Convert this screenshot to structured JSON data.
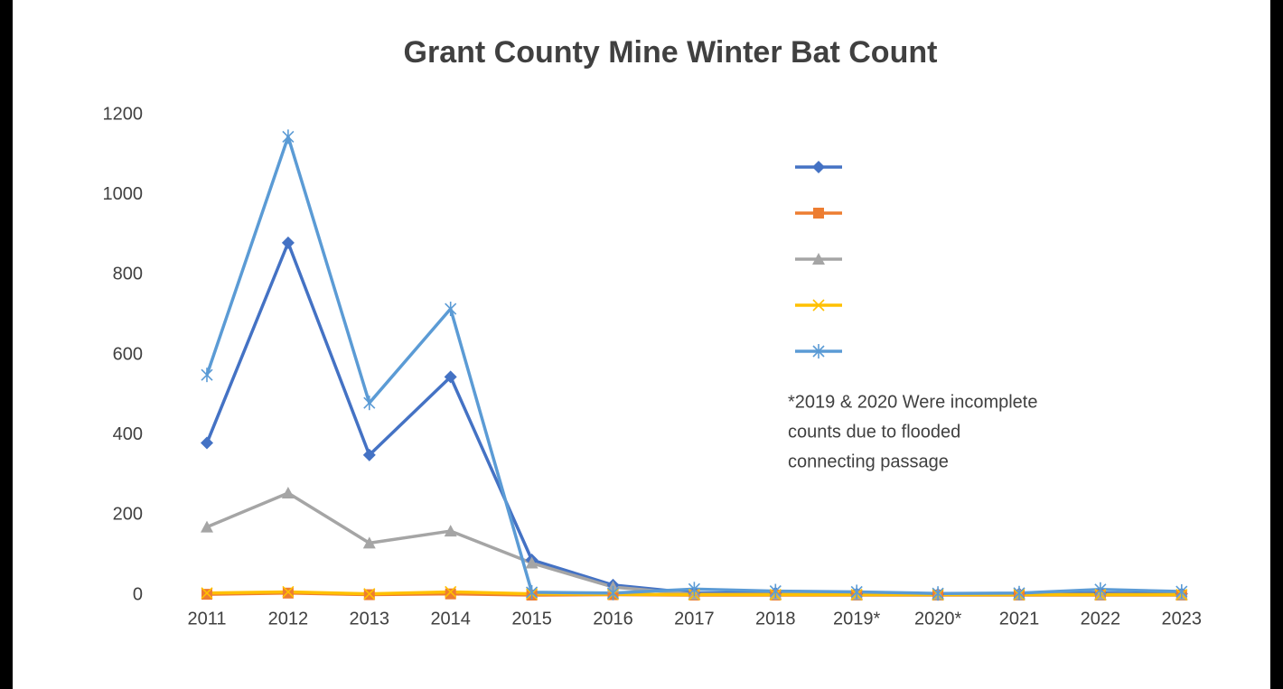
{
  "chart_data": {
    "type": "line",
    "title": "Grant County Mine Winter Bat Count",
    "categories": [
      "2011",
      "2012",
      "2013",
      "2014",
      "2015",
      "2016",
      "2017",
      "2018",
      "2019*",
      "2020*",
      "2021",
      "2022",
      "2023"
    ],
    "series": [
      {
        "color": "#4472c4",
        "marker": "diamond",
        "values": [
          380,
          880,
          350,
          545,
          88,
          25,
          5,
          5,
          3,
          2,
          3,
          5,
          3
        ]
      },
      {
        "color": "#ed7d31",
        "marker": "square",
        "values": [
          2,
          5,
          1,
          3,
          0,
          1,
          0,
          0,
          0,
          0,
          0,
          0,
          0
        ]
      },
      {
        "color": "#a5a5a5",
        "marker": "triangle",
        "values": [
          170,
          255,
          130,
          160,
          80,
          20,
          2,
          2,
          1,
          1,
          1,
          1,
          1
        ]
      },
      {
        "color": "#ffc000",
        "marker": "x",
        "values": [
          5,
          8,
          3,
          8,
          3,
          2,
          1,
          1,
          1,
          1,
          1,
          1,
          1
        ]
      },
      {
        "color": "#5b9bd5",
        "marker": "star",
        "values": [
          550,
          1145,
          480,
          715,
          7,
          5,
          15,
          10,
          8,
          4,
          5,
          14,
          9
        ]
      }
    ],
    "ylim": [
      0,
      1200
    ],
    "yticks": [
      0,
      200,
      400,
      600,
      800,
      1000,
      1200
    ],
    "grid": false,
    "legend": "top-right",
    "annotation": [
      "*2019 & 2020 Were incomplete",
      "counts due to flooded",
      "connecting passage"
    ]
  }
}
